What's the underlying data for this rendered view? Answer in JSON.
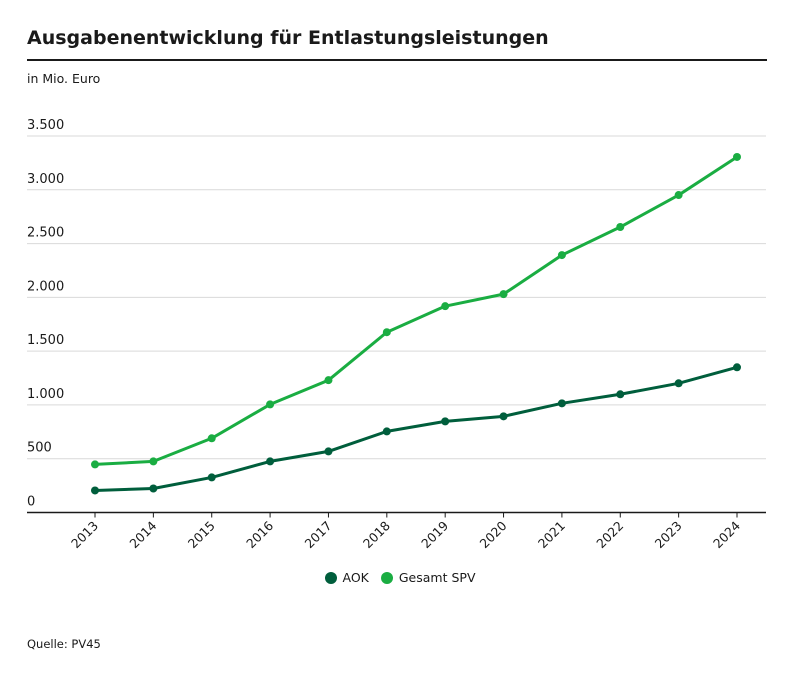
{
  "chart_data": {
    "type": "line",
    "title": "Ausgabenentwicklung für Entlastungsleistungen",
    "ylabel": "in Mio. Euro",
    "xlabel": "",
    "categories": [
      "2013",
      "2014",
      "2015",
      "2016",
      "2017",
      "2018",
      "2019",
      "2020",
      "2021",
      "2022",
      "2023",
      "2024"
    ],
    "ylim": [
      0,
      3500
    ],
    "yticks": [
      0,
      500,
      1000,
      1500,
      2000,
      2500,
      3000,
      3500
    ],
    "ytick_labels": [
      "0",
      "500",
      "1.000",
      "1.500",
      "2.000",
      "2.500",
      "3.000",
      "3.500"
    ],
    "grid": true,
    "legend_position": "bottom-center",
    "series": [
      {
        "name": "AOK",
        "color": "#005e3c",
        "values": [
          205,
          223,
          326,
          475,
          568,
          754,
          847,
          894,
          1015,
          1099,
          1201,
          1350
        ]
      },
      {
        "name": "Gesamt SPV",
        "color": "#1aad42",
        "values": [
          447,
          475,
          690,
          1005,
          1230,
          1676,
          1918,
          2030,
          2393,
          2654,
          2951,
          3305
        ]
      }
    ],
    "source": "Quelle: PV45"
  }
}
